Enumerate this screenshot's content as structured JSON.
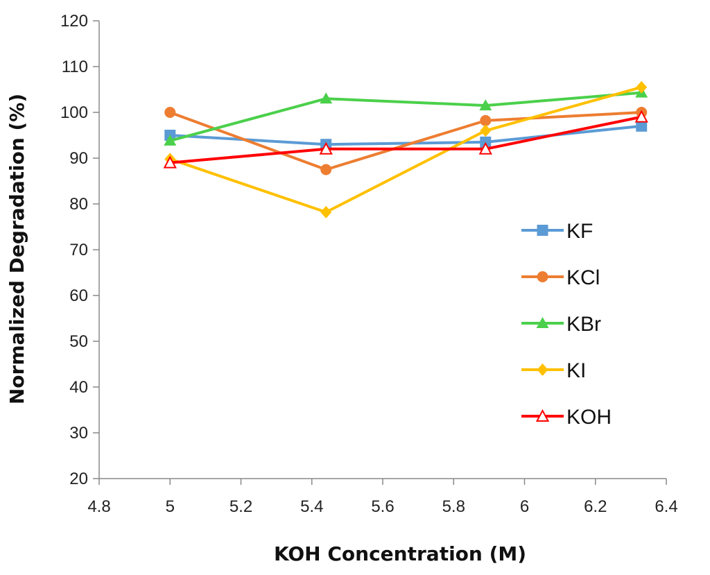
{
  "chart_data": {
    "type": "line",
    "title": "",
    "xlabel": "KOH Concentration (M)",
    "ylabel": "Normalized Degradation (%)",
    "xlim": [
      4.8,
      6.4
    ],
    "ylim": [
      20,
      120
    ],
    "xticks": [
      4.8,
      5,
      5.2,
      5.4,
      5.6,
      5.8,
      6,
      6.2,
      6.4
    ],
    "xtick_labels": [
      "4.8",
      "5",
      "5.2",
      "5.4",
      "5.6",
      "5.8",
      "6",
      "6.2",
      "6.4"
    ],
    "yticks": [
      20,
      30,
      40,
      50,
      60,
      70,
      80,
      90,
      100,
      110,
      120
    ],
    "ytick_labels": [
      "20",
      "30",
      "40",
      "50",
      "60",
      "70",
      "80",
      "90",
      "100",
      "110",
      "120"
    ],
    "grid": false,
    "legend_position": "right",
    "x": [
      5.0,
      5.44,
      5.89,
      6.33
    ],
    "series": [
      {
        "name": "KF",
        "color": "#5B9BD5",
        "marker": "square",
        "values": [
          95,
          93,
          93.5,
          97
        ]
      },
      {
        "name": "KCl",
        "color": "#ED7D31",
        "marker": "circle",
        "values": [
          100,
          87.5,
          98.2,
          100
        ]
      },
      {
        "name": "KBr",
        "color": "#4BD04B",
        "marker": "triangle",
        "values": [
          93.8,
          103,
          101.5,
          104.3
        ]
      },
      {
        "name": "KI",
        "color": "#FFC000",
        "marker": "diamond",
        "values": [
          89.8,
          78.2,
          96,
          105.5
        ]
      },
      {
        "name": "KOH",
        "color": "#FF0000",
        "marker": "open-triangle",
        "values": [
          89,
          92,
          92,
          99
        ]
      }
    ]
  }
}
